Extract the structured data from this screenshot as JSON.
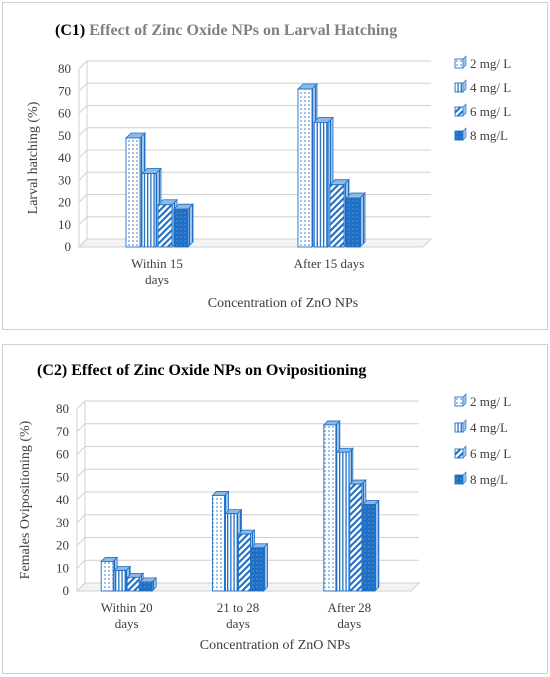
{
  "colors": {
    "accent": "#1f6fc5",
    "grid": "#d0d0d0",
    "text": "#3d3d3d",
    "title1_subtitle": "#808080"
  },
  "chart_data": [
    {
      "type": "bar",
      "panel_label": "(C1)",
      "title": "Effect of Zinc Oxide NPs on Larval Hatching",
      "xlabel": "Concentration of ZnO NPs",
      "ylabel": "Larval hatching (%)",
      "ylim": [
        0,
        80
      ],
      "yticks": [
        "0",
        "10",
        "20",
        "30",
        "40",
        "50",
        "60",
        "70",
        "80"
      ],
      "categories": [
        [
          "Within 15",
          "days"
        ],
        [
          "After 15 days"
        ]
      ],
      "series": [
        {
          "name": "2 mg/ L",
          "pattern": "dots",
          "values": [
            49,
            71
          ]
        },
        {
          "name": "4 mg/ L",
          "pattern": "vlines",
          "values": [
            33,
            56
          ]
        },
        {
          "name": "6 mg/ L",
          "pattern": "diag",
          "values": [
            19,
            28
          ]
        },
        {
          "name": "8 mg/L",
          "pattern": "solid",
          "values": [
            17,
            22
          ]
        }
      ],
      "grid": true,
      "legend": "right"
    },
    {
      "type": "bar",
      "panel_label": "(C2)",
      "title": "Effect of Zinc Oxide NPs on Ovipositioning",
      "xlabel": "Concentration of ZnO NPs",
      "ylabel": "Females Ovipositioning (%)",
      "ylim": [
        0,
        80
      ],
      "yticks": [
        "0",
        "10",
        "20",
        "30",
        "40",
        "50",
        "60",
        "70",
        "80"
      ],
      "categories": [
        [
          "Within 20",
          "days"
        ],
        [
          "21 to 28",
          "days"
        ],
        [
          "After 28",
          "days"
        ]
      ],
      "series": [
        {
          "name": "2 mg/ L",
          "pattern": "dots",
          "values": [
            13,
            42,
            73
          ]
        },
        {
          "name": "4 mg/L",
          "pattern": "vlines",
          "values": [
            9,
            34,
            61
          ]
        },
        {
          "name": "6 mg/ L",
          "pattern": "diag",
          "values": [
            6,
            25,
            47
          ]
        },
        {
          "name": "8 mg/L",
          "pattern": "solid",
          "values": [
            4,
            19,
            38
          ]
        }
      ],
      "grid": true,
      "legend": "right"
    }
  ]
}
